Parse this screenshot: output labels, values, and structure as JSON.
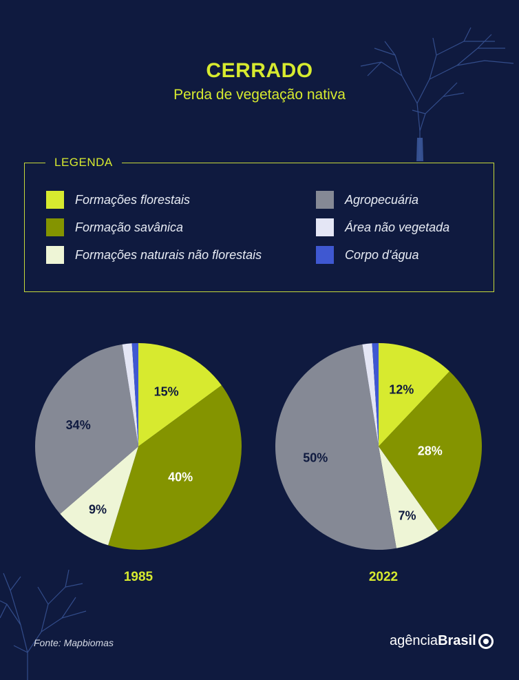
{
  "title": "CERRADO",
  "subtitle": "Perda de vegetação nativa",
  "legend": {
    "title": "LEGENDA",
    "items": [
      {
        "label": "Formações florestais",
        "color": "#d7ea2f"
      },
      {
        "label": "Formação savânica",
        "color": "#849400"
      },
      {
        "label": "Formações naturais não florestais",
        "color": "#eef5d6"
      },
      {
        "label": "Agropecuária",
        "color": "#858995"
      },
      {
        "label": "Área não vegetada",
        "color": "#e4e6f5"
      },
      {
        "label": "Corpo d'água",
        "color": "#3f58d1"
      }
    ]
  },
  "chart_data": [
    {
      "type": "pie",
      "title": "1985",
      "categories": [
        "Formações florestais",
        "Formação savânica",
        "Formações naturais não florestais",
        "Agropecuária",
        "Área não vegetada",
        "Corpo d'água"
      ],
      "values": [
        15,
        40,
        9,
        34,
        1.5,
        1.0
      ],
      "labels": [
        "15%",
        "40%",
        "9%",
        "34%",
        "",
        ""
      ]
    },
    {
      "type": "pie",
      "title": "2022",
      "categories": [
        "Formações florestais",
        "Formação savânica",
        "Formações naturais não florestais",
        "Agropecuária",
        "Área não vegetada",
        "Corpo d'água"
      ],
      "values": [
        12,
        28,
        7,
        50,
        1.5,
        1.0
      ],
      "labels": [
        "12%",
        "28%",
        "7%",
        "50%",
        "",
        ""
      ]
    }
  ],
  "source": "Fonte: Mapbiomas",
  "brand": {
    "light": "agência",
    "bold": "Brasil"
  }
}
